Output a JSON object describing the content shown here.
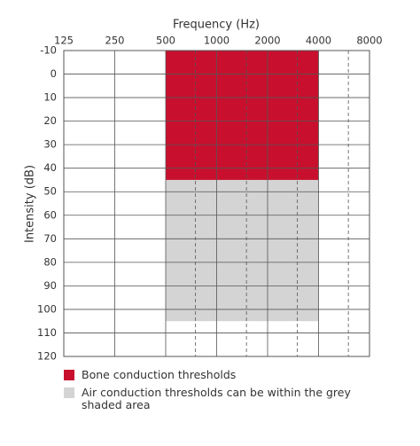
{
  "chart_data": {
    "type": "region",
    "x_label": "Frequency (Hz)",
    "y_label": "Intensity (dB)",
    "xscale": "log",
    "xlim": [
      125,
      8000
    ],
    "xticks": [
      125,
      250,
      500,
      1000,
      2000,
      4000,
      8000
    ],
    "minor_xticks": [
      750,
      1500,
      3000,
      6000
    ],
    "ylim": [
      -10,
      120
    ],
    "y_inverted": true,
    "yticks": [
      -10,
      0,
      10,
      20,
      30,
      40,
      50,
      60,
      70,
      80,
      90,
      100,
      110,
      120
    ],
    "grid": true,
    "regions": [
      {
        "name": "Bone conduction thresholds",
        "color": "#c8102e",
        "x": [
          500,
          4000
        ],
        "y": [
          -10,
          45
        ]
      },
      {
        "name": "Air conduction thresholds can be within the grey shaded area",
        "color": "#d4d4d4",
        "x": [
          500,
          4000
        ],
        "y": [
          45,
          105
        ]
      }
    ]
  }
}
